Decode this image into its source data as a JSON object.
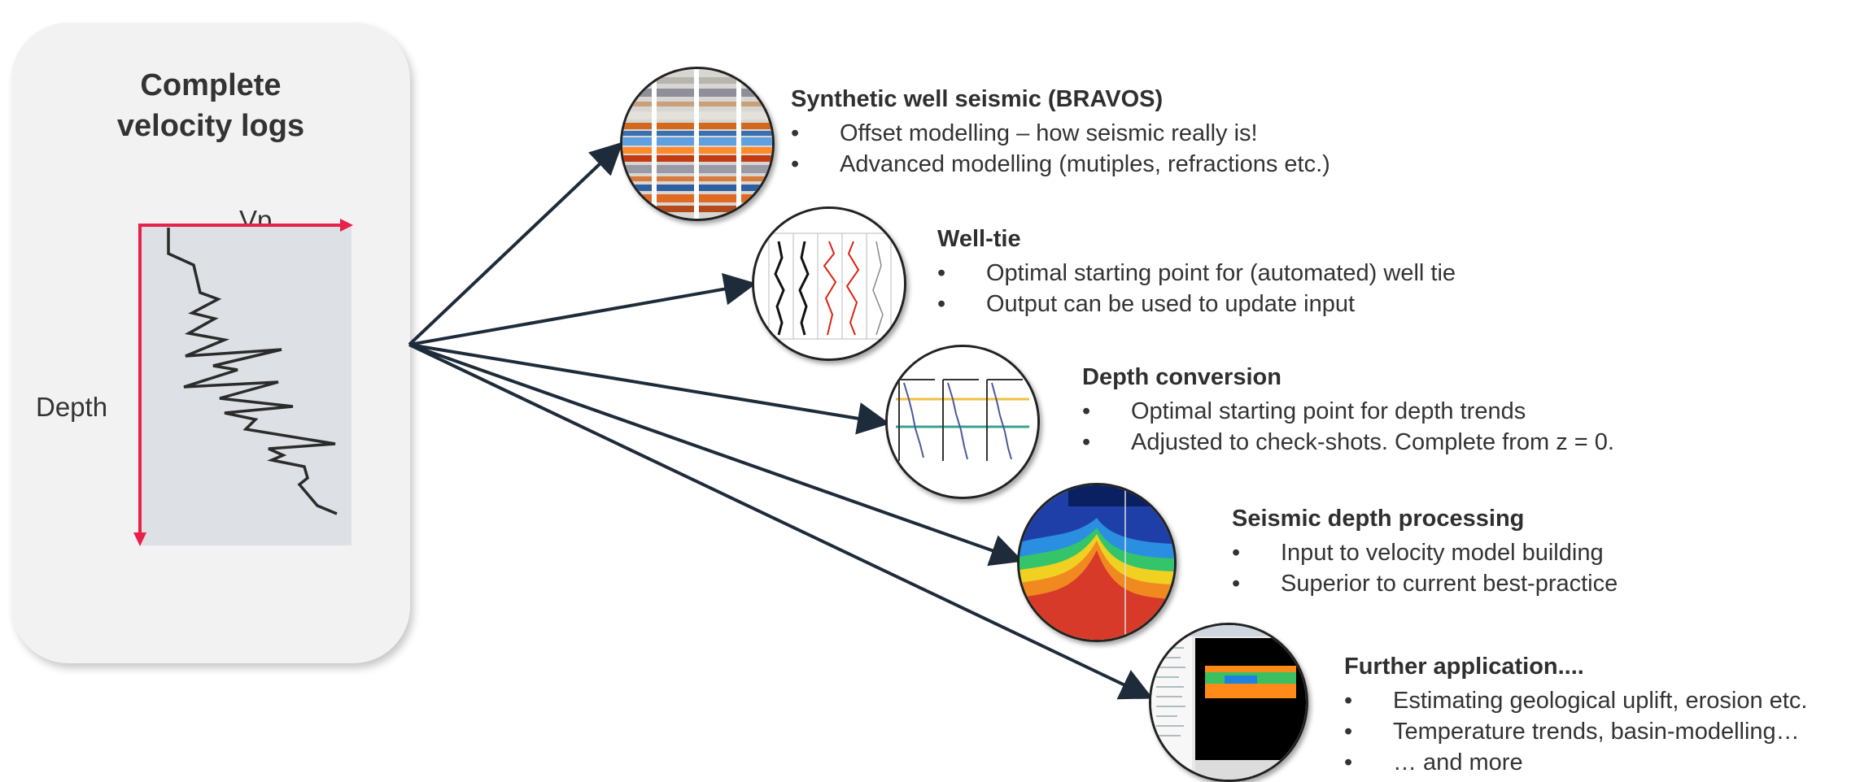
{
  "card": {
    "title_line1": "Complete",
    "title_line2": "velocity logs",
    "x_axis_label": "Vp",
    "y_axis_label": "Depth"
  },
  "colors": {
    "axis": "#e8204a",
    "arrow": "#1e2b3a",
    "card_bg": "#f2f2f2",
    "plot_bg": "#dde0e4"
  },
  "bullet_glyph": "•",
  "applications": [
    {
      "icon": "synthetic-seismic-thumbnail",
      "title": "Synthetic well seismic (BRAVOS)",
      "bullets": [
        "Offset modelling – how seismic really is!",
        "Advanced modelling (mutiples, refractions  etc.)"
      ]
    },
    {
      "icon": "well-tie-thumbnail",
      "title": "Well-tie",
      "bullets": [
        "Optimal starting point for (automated) well tie",
        "Output can be used to update input"
      ]
    },
    {
      "icon": "depth-conversion-thumbnail",
      "title": "Depth conversion",
      "bullets": [
        "Optimal starting point for depth trends",
        "Adjusted to check-shots. Complete from z = 0."
      ]
    },
    {
      "icon": "seismic-depth-thumbnail",
      "title": "Seismic depth processing",
      "bullets": [
        "Input to velocity model building",
        "Superior to current best-practice"
      ]
    },
    {
      "icon": "software-screenshot-thumbnail",
      "title": "Further application....",
      "bullets": [
        "Estimating geological uplift, erosion etc.",
        "Temperature trends, basin-modelling…",
        "… and more"
      ]
    }
  ]
}
